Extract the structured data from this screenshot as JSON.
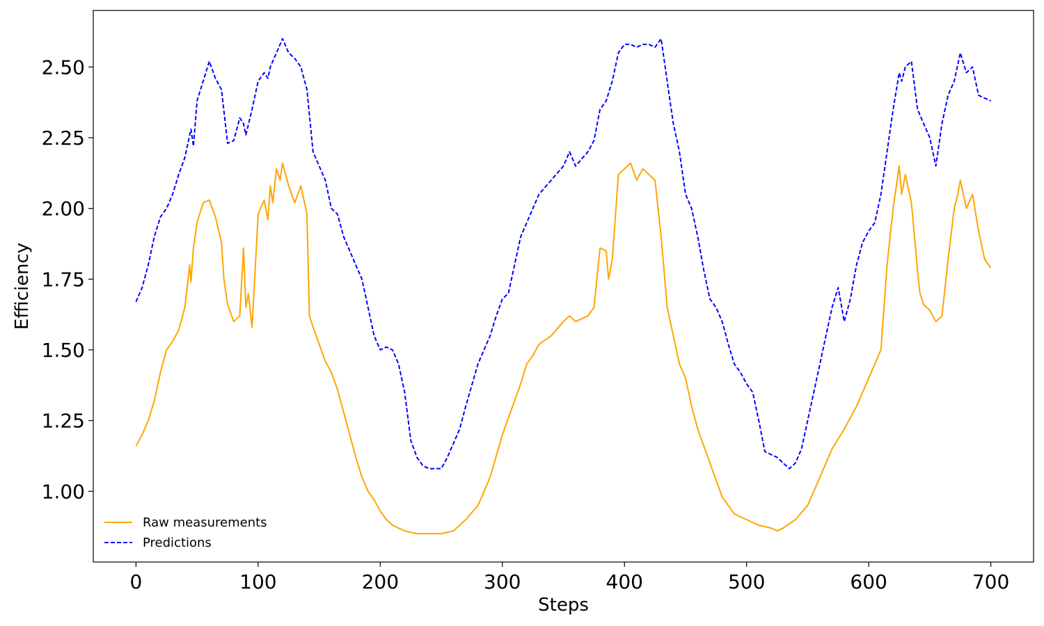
{
  "chart_data": {
    "type": "line",
    "title": "",
    "xlabel": "Steps",
    "ylabel": "Efficiency",
    "xlim": [
      -35,
      735
    ],
    "ylim": [
      0.75,
      2.7
    ],
    "xticks": [
      0,
      100,
      200,
      300,
      400,
      500,
      600,
      700
    ],
    "xtick_labels": [
      "0",
      "100",
      "200",
      "300",
      "400",
      "500",
      "600",
      "700"
    ],
    "yticks": [
      1.0,
      1.25,
      1.5,
      1.75,
      2.0,
      2.25,
      2.5
    ],
    "ytick_labels": [
      "1.00",
      "1.25",
      "1.50",
      "1.75",
      "2.00",
      "2.25",
      "2.50"
    ],
    "grid": false,
    "legend_position": "lower-left",
    "series": [
      {
        "name": "Raw measurements",
        "color": "#ffa500",
        "dash": "solid",
        "x": [
          0,
          5,
          10,
          15,
          20,
          25,
          30,
          35,
          40,
          44,
          45,
          47,
          50,
          55,
          60,
          65,
          70,
          72,
          75,
          80,
          85,
          88,
          90,
          92,
          95,
          100,
          105,
          108,
          110,
          112,
          115,
          118,
          120,
          125,
          130,
          135,
          140,
          142,
          145,
          150,
          155,
          160,
          165,
          170,
          175,
          180,
          185,
          190,
          195,
          200,
          205,
          210,
          220,
          230,
          240,
          250,
          260,
          270,
          280,
          290,
          300,
          310,
          315,
          320,
          325,
          330,
          340,
          350,
          355,
          360,
          370,
          375,
          380,
          385,
          387,
          390,
          395,
          400,
          405,
          410,
          415,
          420,
          425,
          430,
          435,
          440,
          445,
          450,
          455,
          460,
          470,
          480,
          490,
          500,
          510,
          520,
          525,
          530,
          540,
          550,
          560,
          570,
          580,
          590,
          600,
          605,
          610,
          615,
          620,
          625,
          627,
          630,
          635,
          640,
          642,
          645,
          650,
          655,
          660,
          665,
          670,
          673,
          675,
          680,
          685,
          690,
          695,
          700
        ],
        "y": [
          1.16,
          1.2,
          1.25,
          1.32,
          1.42,
          1.5,
          1.53,
          1.57,
          1.65,
          1.8,
          1.74,
          1.86,
          1.95,
          2.02,
          2.03,
          1.97,
          1.88,
          1.75,
          1.66,
          1.6,
          1.62,
          1.86,
          1.65,
          1.7,
          1.58,
          1.98,
          2.03,
          1.96,
          2.08,
          2.02,
          2.14,
          2.1,
          2.16,
          2.08,
          2.02,
          2.08,
          1.98,
          1.62,
          1.58,
          1.52,
          1.46,
          1.42,
          1.36,
          1.28,
          1.2,
          1.12,
          1.05,
          1.0,
          0.97,
          0.93,
          0.9,
          0.88,
          0.86,
          0.85,
          0.85,
          0.85,
          0.86,
          0.9,
          0.95,
          1.05,
          1.2,
          1.32,
          1.38,
          1.45,
          1.48,
          1.52,
          1.55,
          1.6,
          1.62,
          1.6,
          1.62,
          1.65,
          1.86,
          1.85,
          1.75,
          1.82,
          2.12,
          2.14,
          2.16,
          2.1,
          2.14,
          2.12,
          2.1,
          1.9,
          1.65,
          1.55,
          1.45,
          1.4,
          1.3,
          1.22,
          1.1,
          0.98,
          0.92,
          0.9,
          0.88,
          0.87,
          0.86,
          0.87,
          0.9,
          0.95,
          1.05,
          1.15,
          1.22,
          1.3,
          1.4,
          1.45,
          1.5,
          1.8,
          2.0,
          2.15,
          2.05,
          2.12,
          2.02,
          1.78,
          1.7,
          1.66,
          1.64,
          1.6,
          1.62,
          1.82,
          2.0,
          2.05,
          2.1,
          2.0,
          2.05,
          1.92,
          1.82,
          1.79
        ]
      },
      {
        "name": "Predictions",
        "color": "#0000ff",
        "dash": "dashed",
        "x": [
          0,
          5,
          10,
          15,
          20,
          25,
          30,
          35,
          40,
          45,
          47,
          50,
          55,
          60,
          65,
          70,
          75,
          80,
          85,
          88,
          90,
          95,
          100,
          105,
          108,
          110,
          115,
          120,
          125,
          130,
          135,
          140,
          145,
          150,
          155,
          160,
          165,
          170,
          175,
          180,
          185,
          190,
          195,
          200,
          205,
          210,
          215,
          220,
          225,
          230,
          235,
          240,
          245,
          250,
          255,
          260,
          265,
          270,
          280,
          290,
          295,
          300,
          305,
          310,
          315,
          320,
          325,
          330,
          340,
          350,
          355,
          360,
          370,
          375,
          380,
          385,
          390,
          395,
          400,
          405,
          410,
          415,
          420,
          425,
          430,
          435,
          440,
          445,
          450,
          455,
          460,
          465,
          470,
          475,
          480,
          485,
          490,
          495,
          500,
          505,
          510,
          515,
          520,
          525,
          530,
          535,
          540,
          545,
          550,
          555,
          560,
          565,
          570,
          575,
          580,
          585,
          590,
          595,
          600,
          605,
          610,
          615,
          620,
          625,
          627,
          630,
          635,
          640,
          645,
          650,
          655,
          660,
          665,
          670,
          675,
          680,
          685,
          690,
          695,
          700
        ],
        "y": [
          1.67,
          1.72,
          1.8,
          1.9,
          1.97,
          2.0,
          2.05,
          2.12,
          2.18,
          2.28,
          2.22,
          2.38,
          2.45,
          2.52,
          2.46,
          2.42,
          2.23,
          2.24,
          2.32,
          2.3,
          2.26,
          2.35,
          2.45,
          2.48,
          2.46,
          2.5,
          2.55,
          2.6,
          2.55,
          2.53,
          2.5,
          2.42,
          2.2,
          2.15,
          2.1,
          2.0,
          1.98,
          1.9,
          1.85,
          1.8,
          1.75,
          1.65,
          1.55,
          1.5,
          1.51,
          1.5,
          1.45,
          1.35,
          1.18,
          1.12,
          1.09,
          1.08,
          1.08,
          1.08,
          1.12,
          1.17,
          1.22,
          1.3,
          1.45,
          1.55,
          1.62,
          1.68,
          1.7,
          1.8,
          1.9,
          1.95,
          2.0,
          2.05,
          2.1,
          2.15,
          2.2,
          2.15,
          2.2,
          2.24,
          2.35,
          2.38,
          2.45,
          2.55,
          2.58,
          2.58,
          2.57,
          2.58,
          2.58,
          2.57,
          2.6,
          2.45,
          2.3,
          2.2,
          2.05,
          2.0,
          1.9,
          1.78,
          1.68,
          1.65,
          1.6,
          1.52,
          1.45,
          1.42,
          1.38,
          1.35,
          1.25,
          1.14,
          1.13,
          1.12,
          1.1,
          1.08,
          1.1,
          1.15,
          1.25,
          1.35,
          1.45,
          1.55,
          1.65,
          1.72,
          1.6,
          1.68,
          1.8,
          1.88,
          1.92,
          1.95,
          2.05,
          2.2,
          2.35,
          2.48,
          2.45,
          2.5,
          2.52,
          2.35,
          2.3,
          2.25,
          2.15,
          2.3,
          2.4,
          2.45,
          2.55,
          2.48,
          2.5,
          2.4,
          2.39,
          2.38
        ]
      }
    ]
  }
}
